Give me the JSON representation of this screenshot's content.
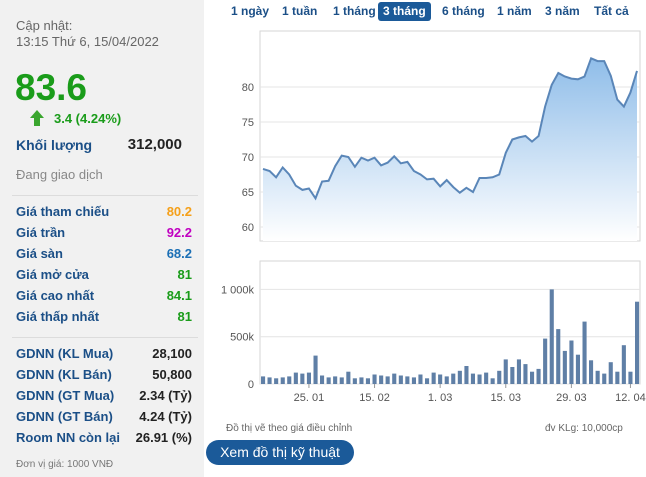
{
  "quote": {
    "update_label": "Cập nhật:",
    "update_time": "13:15 Thứ 6, 15/04/2022",
    "price": "83.6",
    "change": "3.4 (4.24%)",
    "volume_label": "Khối lượng",
    "volume": "312,000",
    "status": "Đang giao dịch"
  },
  "prices": [
    {
      "label": "Giá tham chiếu",
      "value": "80.2",
      "color": "#f5a01a"
    },
    {
      "label": "Giá trần",
      "value": "92.2",
      "color": "#c000c0"
    },
    {
      "label": "Giá sàn",
      "value": "68.2",
      "color": "#1b6fb5"
    },
    {
      "label": "Giá mở cửa",
      "value": "81",
      "color": "#1a9c1a"
    },
    {
      "label": "Giá cao nhất",
      "value": "84.1",
      "color": "#1a9c1a"
    },
    {
      "label": "Giá thấp nhất",
      "value": "81",
      "color": "#1a9c1a"
    }
  ],
  "foreign": [
    {
      "label": "GDNN (KL Mua)",
      "value": "28,100"
    },
    {
      "label": "GDNN (KL Bán)",
      "value": "50,800"
    },
    {
      "label": "GDNN (GT Mua)",
      "value": "2.34 (Tỷ)"
    },
    {
      "label": "GDNN (GT Bán)",
      "value": "4.24 (Tỷ)"
    },
    {
      "label": "Room NN còn lại",
      "value": "26.91 (%)"
    }
  ],
  "unit_note": "Đơn vị giá: 1000 VNĐ",
  "tabs": [
    "1 ngày",
    "1 tuần",
    "1 tháng",
    "3 tháng",
    "6 tháng",
    "1 năm",
    "3 năm",
    "Tất cả"
  ],
  "active_tab": "3 tháng",
  "chart_note": "Đồ thị vẽ theo giá điều chỉnh",
  "chart_unit": "đv KLg: 10,000cp",
  "tech_button": "Xem đồ thị kỹ thuật",
  "colors": {
    "up": "#1a9c1a",
    "line": "#5a86b8",
    "area_top": "#8fbde9",
    "bar": "#5f7fa6",
    "button": "#1b5a99"
  },
  "chart_data": [
    {
      "type": "area",
      "ylim": [
        58,
        88
      ],
      "yticks": [
        60,
        65,
        70,
        75,
        80
      ],
      "grid": true,
      "x_tick_labels": [
        "25. 01",
        "15. 02",
        "1. 03",
        "15. 03",
        "29. 03",
        "12. 04"
      ],
      "values": [
        68.3,
        68.0,
        67.1,
        68.5,
        67.5,
        65.9,
        65.3,
        65.5,
        64.1,
        66.5,
        66.6,
        68.7,
        70.2,
        70.0,
        68.6,
        69.9,
        69.5,
        69.9,
        68.8,
        69.2,
        70.1,
        69.1,
        69.3,
        68.0,
        67.5,
        66.8,
        66.9,
        65.8,
        66.7,
        65.7,
        64.9,
        65.6,
        65.0,
        67.0,
        67.0,
        67.1,
        67.5,
        70.6,
        72.5,
        72.8,
        73.0,
        72.2,
        73.0,
        77.2,
        80.3,
        82.0,
        81.5,
        81.2,
        81.1,
        81.5,
        84.1,
        83.7,
        83.7,
        81.6,
        78.2,
        77.2,
        79.2,
        82.3
      ]
    },
    {
      "type": "bar",
      "ylim": [
        0,
        1300000
      ],
      "yticks": [
        "0",
        "500k",
        "1 000k"
      ],
      "grid": true,
      "x_tick_labels": [
        "25. 01",
        "15. 02",
        "1. 03",
        "15. 03",
        "29. 03",
        "12. 04"
      ],
      "values": [
        80000,
        70000,
        60000,
        70000,
        80000,
        120000,
        110000,
        120000,
        300000,
        90000,
        70000,
        80000,
        70000,
        130000,
        60000,
        70000,
        60000,
        100000,
        90000,
        80000,
        110000,
        90000,
        80000,
        70000,
        100000,
        60000,
        120000,
        100000,
        80000,
        110000,
        140000,
        190000,
        110000,
        100000,
        120000,
        60000,
        140000,
        260000,
        180000,
        260000,
        210000,
        130000,
        160000,
        480000,
        1000000,
        580000,
        350000,
        460000,
        310000,
        660000,
        250000,
        140000,
        110000,
        230000,
        130000,
        410000,
        130000,
        870000
      ]
    }
  ]
}
